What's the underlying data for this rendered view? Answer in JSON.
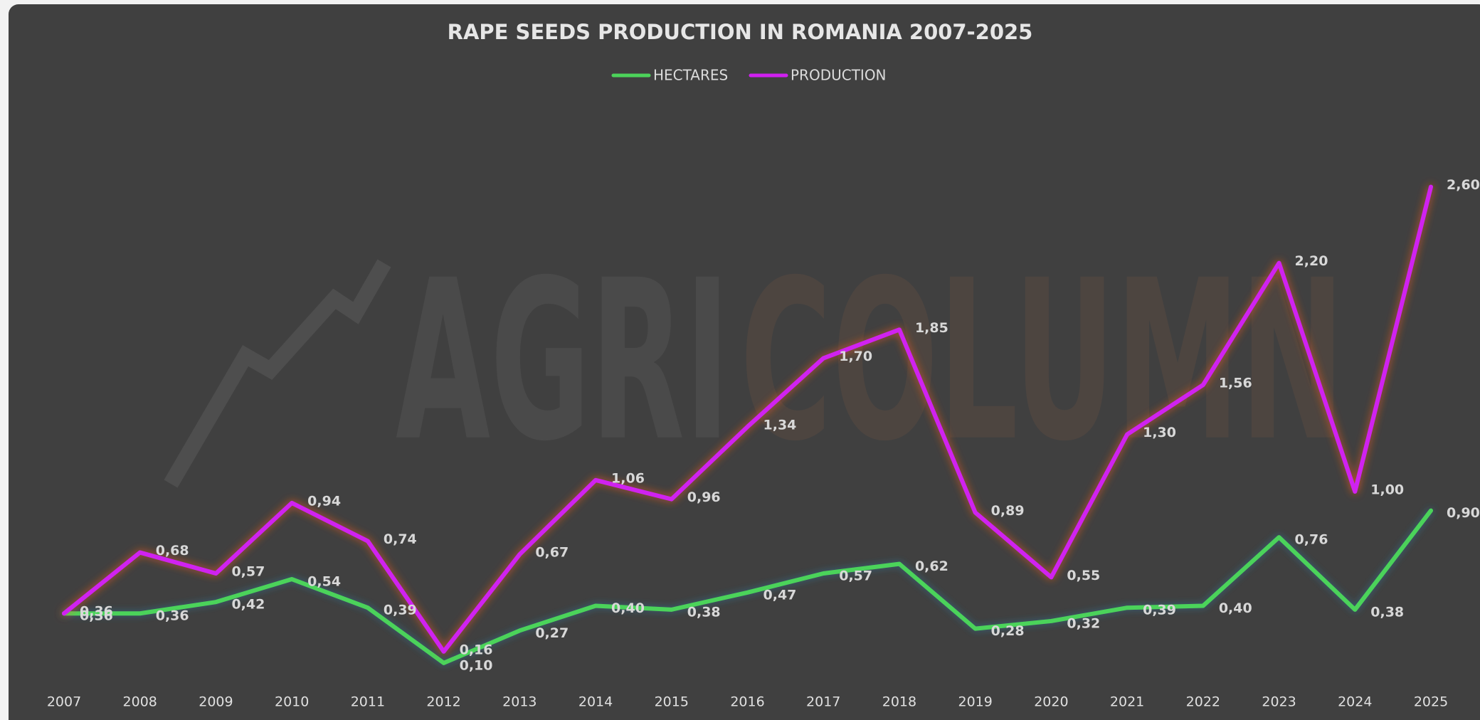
{
  "chart_data": {
    "type": "line",
    "title": "RAPE SEEDS PRODUCTION IN ROMANIA 2007-2025",
    "watermark": [
      "AGRI",
      "COLUMN"
    ],
    "categories": [
      "2007",
      "2008",
      "2009",
      "2010",
      "2011",
      "2012",
      "2013",
      "2014",
      "2015",
      "2016",
      "2017",
      "2018",
      "2019",
      "2020",
      "2021",
      "2022",
      "2023",
      "2024",
      "2025"
    ],
    "series": [
      {
        "name": "HECTARES",
        "color": "#4cd35a",
        "values": [
          0.36,
          0.36,
          0.42,
          0.54,
          0.39,
          0.1,
          0.27,
          0.4,
          0.38,
          0.47,
          0.57,
          0.62,
          0.28,
          0.32,
          0.39,
          0.4,
          0.76,
          0.38,
          0.9
        ],
        "value_labels": [
          "0,36",
          "0,36",
          "0,42",
          "0,54",
          "0,39",
          "0,10",
          "0,27",
          "0,40",
          "0,38",
          "0,47",
          "0,57",
          "0,62",
          "0,28",
          "0,32",
          "0,39",
          "0,40",
          "0,76",
          "0,38",
          "0,90"
        ]
      },
      {
        "name": "PRODUCTION",
        "color": "#d020f0",
        "values": [
          0.36,
          0.68,
          0.57,
          0.94,
          0.74,
          0.16,
          0.67,
          1.06,
          0.96,
          1.34,
          1.7,
          1.85,
          0.89,
          0.55,
          1.3,
          1.56,
          2.2,
          1.0,
          2.6
        ],
        "value_labels": [
          "0,36",
          "0,68",
          "0,57",
          "0,94",
          "0,74",
          "0,16",
          "0,67",
          "1,06",
          "0,96",
          "1,34",
          "1,70",
          "1,85",
          "0,89",
          "0,55",
          "1,30",
          "1,56",
          "2,20",
          "1,00",
          "2,60"
        ]
      }
    ],
    "legend": "top"
  }
}
